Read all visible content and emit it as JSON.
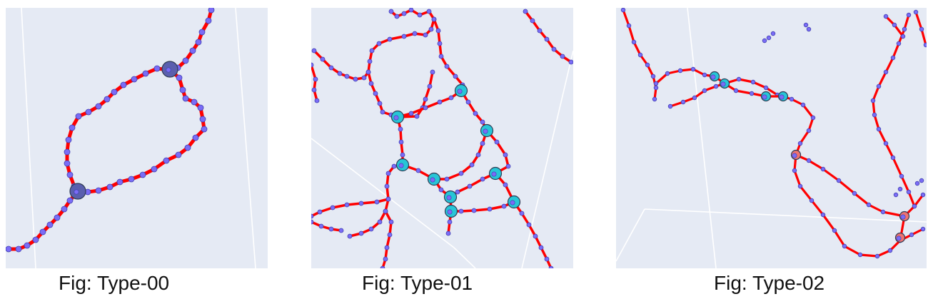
{
  "figures": [
    {
      "caption": "Fig: Type-00",
      "junction_color": "#5a5fae"
    },
    {
      "caption": "Fig: Type-01",
      "junction_color": "#27c6d6"
    },
    {
      "caption": "Fig: Type-02",
      "junction_color": "#f0736f"
    }
  ],
  "colors": {
    "background": "#e5eaf4",
    "edge": "#ff0000",
    "node": "#7b6cf6",
    "node_outline": "#3f3fb0",
    "grid": "#ffffff"
  }
}
